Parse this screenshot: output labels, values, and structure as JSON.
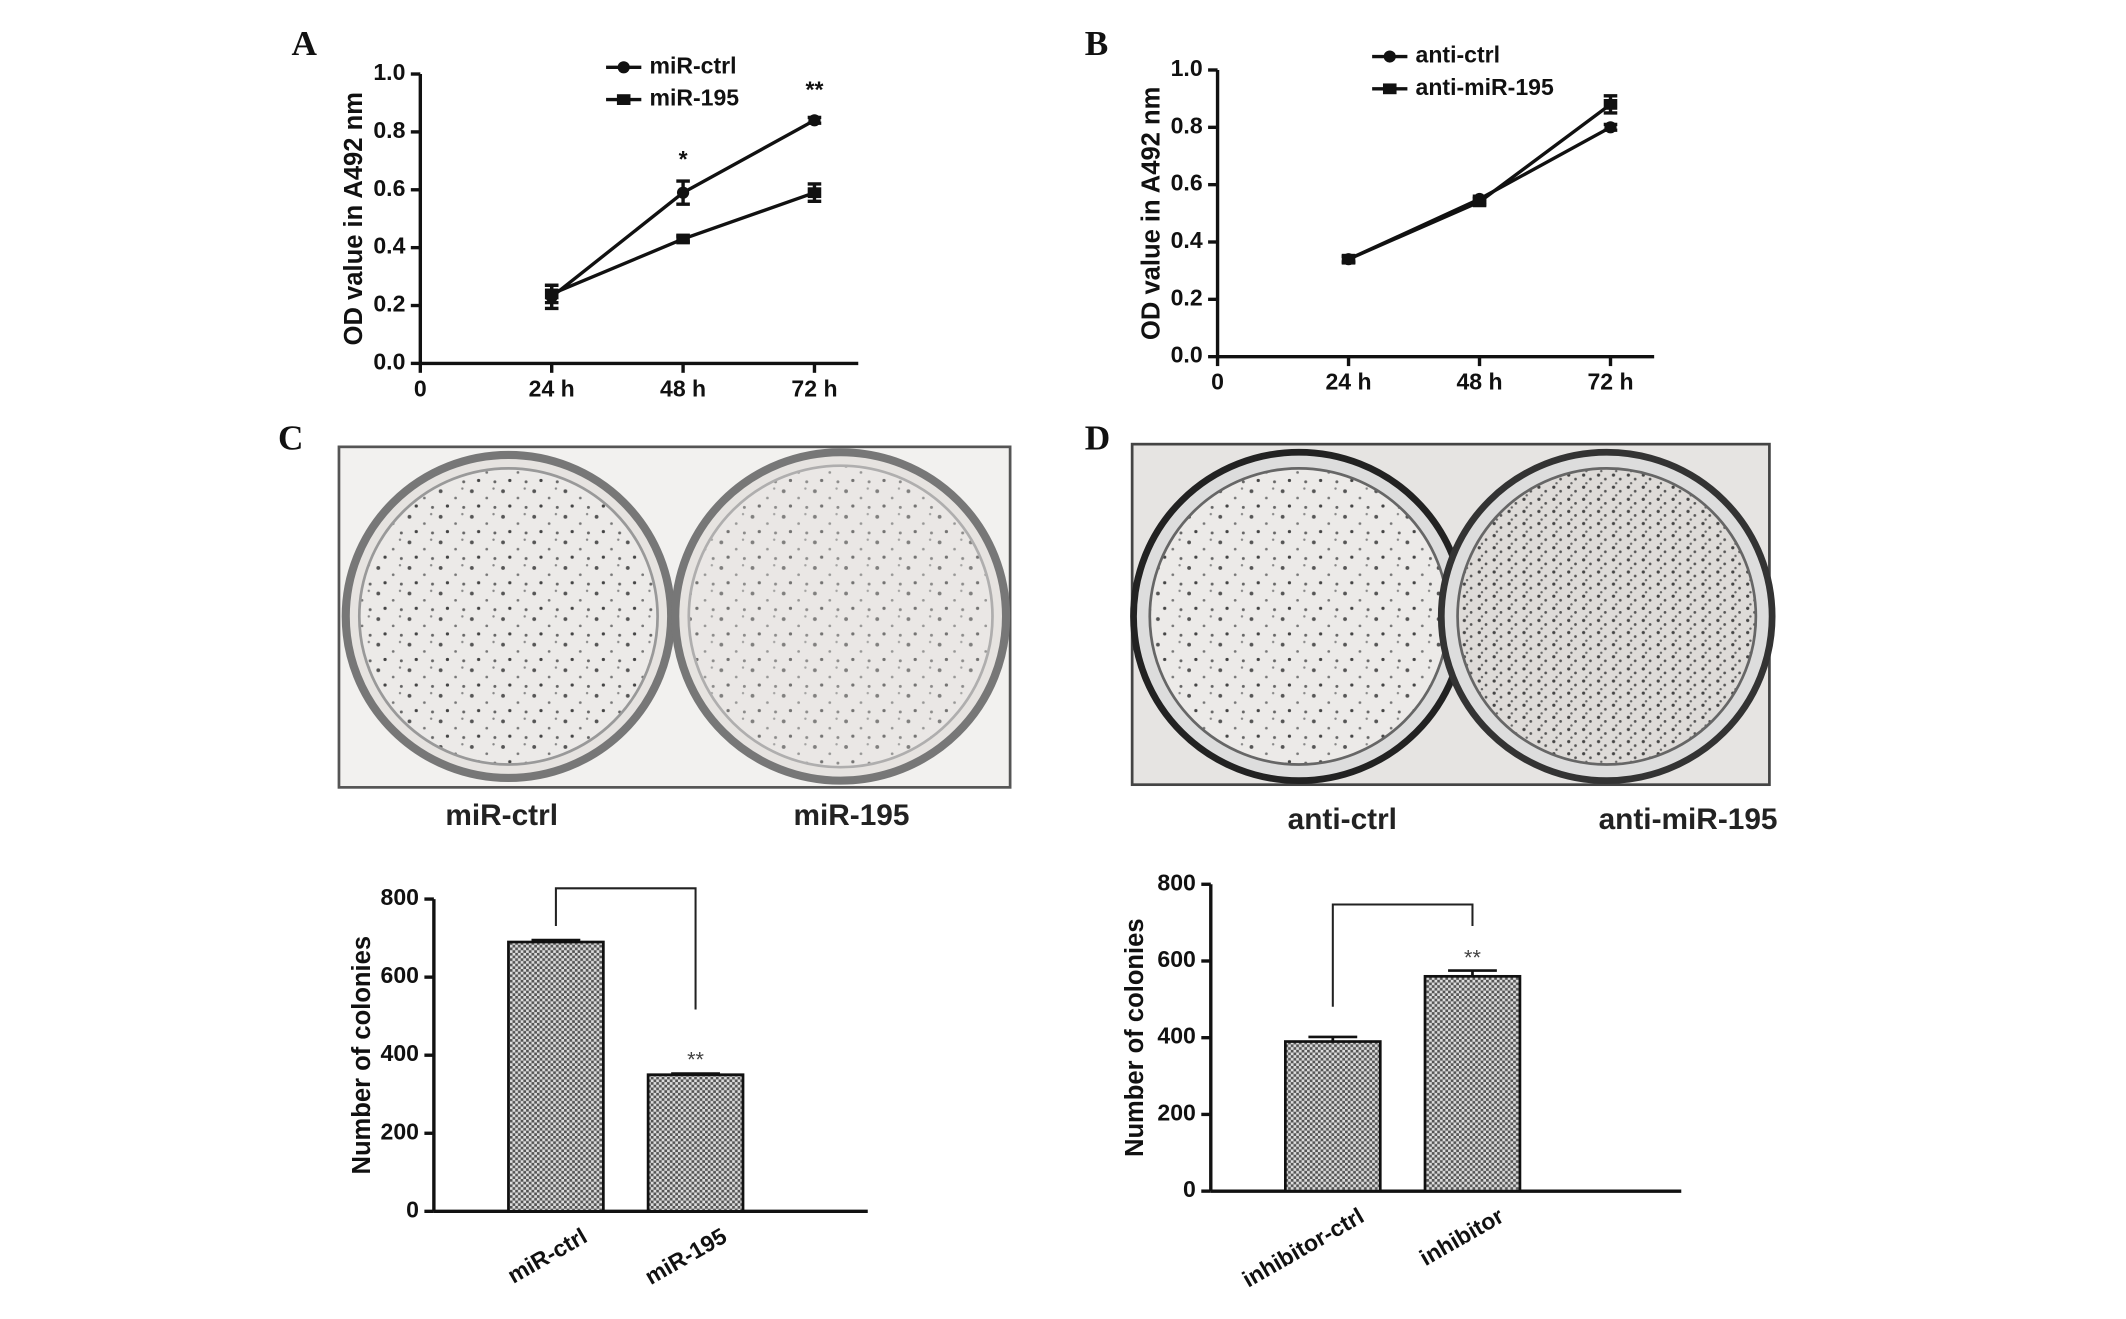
{
  "panel_labels": [
    "A",
    "B",
    "C",
    "D"
  ],
  "photos": [
    {
      "labels": [
        "miR-ctrl",
        "miR-195"
      ]
    },
    {
      "labels": [
        "anti-ctrl",
        "anti-miR-195"
      ]
    }
  ],
  "chart_data": [
    {
      "type": "line",
      "ylabel": "OD value in A492 nm",
      "x": [
        24,
        48,
        72
      ],
      "xlim": [
        0,
        80
      ],
      "xticks": [
        0,
        {
          "value": 24,
          "label": "24 h"
        },
        {
          "value": 48,
          "label": "48 h"
        },
        {
          "value": 72,
          "label": "72 h"
        }
      ],
      "ylim": [
        0,
        1.0
      ],
      "yticks": [
        {
          "value": 0,
          "label": "0.0"
        },
        {
          "value": 0.2,
          "label": "0.2"
        },
        {
          "value": 0.4,
          "label": "0.4"
        },
        {
          "value": 0.6,
          "label": "0.6"
        },
        {
          "value": 0.8,
          "label": "0.8"
        },
        {
          "value": 1.0,
          "label": "1.0"
        }
      ],
      "series": [
        {
          "name": "miR-ctrl",
          "color": "#111111",
          "marker": "circle",
          "values": [
            0.23,
            0.59,
            0.84
          ],
          "errors": [
            0.04,
            0.04,
            0.01
          ]
        },
        {
          "name": "miR-195",
          "color": "#111111",
          "marker": "square",
          "values": [
            0.24,
            0.43,
            0.59
          ],
          "errors": [
            0.03,
            0.01,
            0.03
          ]
        }
      ],
      "annotations": [
        {
          "text": "*",
          "x": 48,
          "y": 0.7
        },
        {
          "text": "**",
          "x": 72,
          "y": 0.94
        }
      ]
    },
    {
      "type": "line",
      "ylabel": "OD value in A492 nm",
      "x": [
        24,
        48,
        72
      ],
      "xlim": [
        0,
        80
      ],
      "xticks": [
        0,
        {
          "value": 24,
          "label": "24 h"
        },
        {
          "value": 48,
          "label": "48 h"
        },
        {
          "value": 72,
          "label": "72 h"
        }
      ],
      "ylim": [
        0,
        1.0
      ],
      "yticks": [
        {
          "value": 0,
          "label": "0.0"
        },
        {
          "value": 0.2,
          "label": "0.2"
        },
        {
          "value": 0.4,
          "label": "0.4"
        },
        {
          "value": 0.6,
          "label": "0.6"
        },
        {
          "value": 0.8,
          "label": "0.8"
        },
        {
          "value": 1.0,
          "label": "1.0"
        }
      ],
      "series": [
        {
          "name": "anti-ctrl",
          "color": "#111111",
          "marker": "circle",
          "values": [
            0.34,
            0.55,
            0.8
          ],
          "errors": [
            0.01,
            0.01,
            0.01
          ]
        },
        {
          "name": "anti-miR-195",
          "color": "#111111",
          "marker": "square",
          "values": [
            0.34,
            0.54,
            0.88
          ],
          "errors": [
            0.01,
            0.01,
            0.03
          ]
        }
      ],
      "annotations": []
    },
    {
      "type": "bar",
      "ylabel": "Number of colonies",
      "categories": [
        "miR-ctrl",
        "miR-195"
      ],
      "values": [
        690,
        350
      ],
      "errors": [
        5,
        3
      ],
      "ylim": [
        0,
        800
      ],
      "yticks": [
        0,
        200,
        400,
        600,
        800
      ],
      "annotations": [
        {
          "text": "**",
          "x": "miR-195",
          "y": 385
        }
      ]
    },
    {
      "type": "bar",
      "ylabel": "Number of colonies",
      "categories": [
        "inhibitor-ctrl",
        "inhibitor"
      ],
      "values": [
        390,
        560
      ],
      "errors": [
        12,
        15
      ],
      "ylim": [
        0,
        800
      ],
      "yticks": [
        0,
        200,
        400,
        600,
        800
      ],
      "annotations": [
        {
          "text": "**",
          "x": "inhibitor",
          "y": 605
        }
      ]
    }
  ]
}
